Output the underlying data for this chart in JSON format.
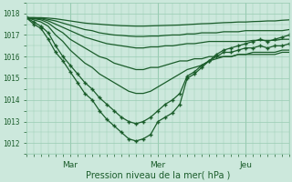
{
  "background_color": "#cce8dc",
  "plot_bg_color": "#cce8dc",
  "grid_color": "#99ccb3",
  "line_color": "#1a5c2a",
  "ylabel_ticks": [
    1012,
    1013,
    1014,
    1015,
    1016,
    1017,
    1018
  ],
  "xlim": [
    0,
    72
  ],
  "ylim": [
    1011.5,
    1018.5
  ],
  "xlabel": "Pression niveau de la mer( hPa )",
  "xtick_positions": [
    12,
    36,
    60
  ],
  "xtick_labels": [
    "Mar",
    "Mer",
    "Jeu"
  ],
  "series": [
    {
      "y": [
        1017.8,
        1017.5,
        1017.3,
        1016.8,
        1016.2,
        1015.8,
        1015.3,
        1014.8,
        1014.3,
        1014.0,
        1013.5,
        1013.1,
        1012.8,
        1012.5,
        1012.2,
        1012.1,
        1012.2,
        1012.4,
        1013.0,
        1013.2,
        1013.4,
        1013.8,
        1015.0,
        1015.2,
        1015.5,
        1015.8,
        1016.1,
        1016.3,
        1016.4,
        1016.5,
        1016.6,
        1016.7,
        1016.8,
        1016.7,
        1016.8,
        1016.9,
        1017.0
      ],
      "marker": true
    },
    {
      "y": [
        1017.8,
        1017.6,
        1017.4,
        1017.1,
        1016.5,
        1016.0,
        1015.6,
        1015.2,
        1014.8,
        1014.5,
        1014.1,
        1013.8,
        1013.5,
        1013.2,
        1013.0,
        1012.9,
        1013.0,
        1013.2,
        1013.5,
        1013.8,
        1014.0,
        1014.3,
        1015.1,
        1015.3,
        1015.6,
        1015.8,
        1016.0,
        1016.2,
        1016.2,
        1016.3,
        1016.4,
        1016.4,
        1016.5,
        1016.4,
        1016.5,
        1016.5,
        1016.6
      ],
      "marker": true
    },
    {
      "y": [
        1017.8,
        1017.7,
        1017.6,
        1017.4,
        1017.0,
        1016.7,
        1016.3,
        1016.0,
        1015.7,
        1015.5,
        1015.2,
        1015.0,
        1014.8,
        1014.6,
        1014.4,
        1014.3,
        1014.3,
        1014.4,
        1014.6,
        1014.8,
        1015.0,
        1015.2,
        1015.4,
        1015.5,
        1015.6,
        1015.8,
        1015.9,
        1016.0,
        1016.0,
        1016.1,
        1016.1,
        1016.2,
        1016.2,
        1016.2,
        1016.2,
        1016.3,
        1016.3
      ],
      "marker": false
    },
    {
      "y": [
        1017.8,
        1017.75,
        1017.7,
        1017.55,
        1017.3,
        1017.1,
        1016.8,
        1016.6,
        1016.4,
        1016.2,
        1016.0,
        1015.9,
        1015.7,
        1015.6,
        1015.5,
        1015.4,
        1015.4,
        1015.5,
        1015.5,
        1015.6,
        1015.7,
        1015.8,
        1015.8,
        1015.9,
        1015.9,
        1016.0,
        1016.0,
        1016.0,
        1016.0,
        1016.1,
        1016.1,
        1016.1,
        1016.1,
        1016.1,
        1016.1,
        1016.2,
        1016.2
      ],
      "marker": false
    },
    {
      "y": [
        1017.8,
        1017.78,
        1017.75,
        1017.65,
        1017.5,
        1017.35,
        1017.2,
        1017.05,
        1016.9,
        1016.8,
        1016.7,
        1016.6,
        1016.55,
        1016.5,
        1016.45,
        1016.4,
        1016.4,
        1016.45,
        1016.45,
        1016.5,
        1016.5,
        1016.55,
        1016.6,
        1016.6,
        1016.65,
        1016.7,
        1016.7,
        1016.7,
        1016.7,
        1016.7,
        1016.7,
        1016.75,
        1016.75,
        1016.75,
        1016.75,
        1016.8,
        1016.8
      ],
      "marker": false
    },
    {
      "y": [
        1017.8,
        1017.8,
        1017.78,
        1017.72,
        1017.65,
        1017.55,
        1017.45,
        1017.35,
        1017.25,
        1017.2,
        1017.1,
        1017.05,
        1017.0,
        1016.98,
        1016.95,
        1016.93,
        1016.93,
        1016.95,
        1016.95,
        1016.98,
        1017.0,
        1017.0,
        1017.05,
        1017.05,
        1017.1,
        1017.1,
        1017.1,
        1017.15,
        1017.15,
        1017.15,
        1017.2,
        1017.2,
        1017.2,
        1017.2,
        1017.2,
        1017.2,
        1017.25
      ],
      "marker": false
    },
    {
      "y": [
        1017.8,
        1017.8,
        1017.8,
        1017.78,
        1017.75,
        1017.7,
        1017.65,
        1017.6,
        1017.55,
        1017.52,
        1017.5,
        1017.47,
        1017.45,
        1017.43,
        1017.42,
        1017.41,
        1017.41,
        1017.42,
        1017.43,
        1017.44,
        1017.45,
        1017.46,
        1017.48,
        1017.5,
        1017.52,
        1017.53,
        1017.55,
        1017.57,
        1017.58,
        1017.6,
        1017.6,
        1017.62,
        1017.63,
        1017.65,
        1017.65,
        1017.68,
        1017.7
      ],
      "marker": false
    }
  ],
  "x_hours": [
    0,
    2,
    4,
    6,
    8,
    10,
    12,
    14,
    16,
    18,
    20,
    22,
    24,
    26,
    28,
    30,
    32,
    34,
    36,
    38,
    40,
    42,
    44,
    46,
    48,
    50,
    52,
    54,
    56,
    58,
    60,
    62,
    64,
    66,
    68,
    70,
    72
  ]
}
